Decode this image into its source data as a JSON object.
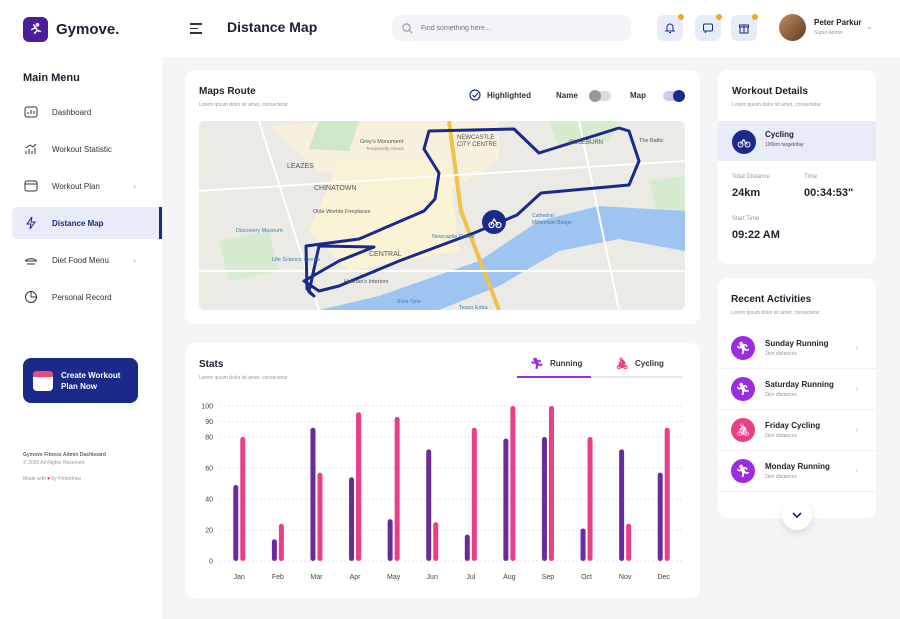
{
  "brand": {
    "name": "Gymove."
  },
  "sidebar": {
    "menu_title": "Main Menu",
    "items": [
      {
        "label": "Dashboard"
      },
      {
        "label": "Workout Statistic"
      },
      {
        "label": "Workout Plan"
      },
      {
        "label": "Distance Map"
      },
      {
        "label": "Diet Food Menu"
      },
      {
        "label": "Personal Record"
      }
    ],
    "cta": {
      "line1": "Create Workout",
      "line2": "Plan Now"
    },
    "footer": {
      "title": "Gymove Fitness Admin Dashboard",
      "copyright": "© 2020 All Rights Reserved",
      "made_with": "Made with",
      "by": "by Peterdraw"
    }
  },
  "header": {
    "title": "Distance Map",
    "search_placeholder": "Find something here...",
    "user": {
      "name": "Peter Parkur",
      "role": "Super Admin"
    }
  },
  "maps_route": {
    "title": "Maps Route",
    "subtitle": "Lorem ipsum dolor sit amet, consectetur",
    "highlighted_label": "Highlighted",
    "name_label": "Name",
    "map_label": "Map",
    "name_on": false,
    "map_on": true,
    "places": [
      "LEAZES",
      "CHINATOWN",
      "CENTRAL",
      "Grey's Monument",
      "Temporarily closed",
      "NEWCASTLE",
      "CITY CENTRE",
      "OUSEBURN",
      "The Baltic",
      "Olde Worlde Fireplaces",
      "Discovery Museum",
      "Newcastle Castle",
      "Life Science Centre",
      "Hadrian's Interiors",
      "Tesco Extra",
      "River Tyne",
      "Cathedral",
      "Millennium Bridge"
    ]
  },
  "stats": {
    "title": "Stats",
    "subtitle": "Lorem ipsum dolor sit amet, consectetur",
    "tabs": [
      {
        "label": "Running"
      },
      {
        "label": "Cycling"
      }
    ]
  },
  "chart_data": {
    "type": "bar",
    "categories": [
      "Jan",
      "Feb",
      "Mar",
      "Apr",
      "May",
      "Jun",
      "Jul",
      "Aug",
      "Sep",
      "Oct",
      "Nov",
      "Dec"
    ],
    "series": [
      {
        "values": [
          49,
          14,
          86,
          54,
          27,
          72,
          17,
          79,
          80,
          21,
          72,
          57
        ],
        "color": "#6a2c9c"
      },
      {
        "values": [
          80,
          24,
          57,
          96,
          93,
          25,
          86,
          100,
          100,
          80,
          24,
          86
        ],
        "color": "#e93f8a"
      }
    ],
    "yticks": [
      0,
      20,
      40,
      60,
      80,
      90,
      100
    ],
    "ylim": [
      0,
      100
    ]
  },
  "workout": {
    "title": "Workout Details",
    "subtitle": "Lorem ipsum dolor sit amet, consectetur",
    "activity": "Cycling",
    "target": "100km target/day",
    "total_label": "Total Distance",
    "total": "24km",
    "time_label": "Time",
    "time": "00:34:53\"",
    "start_label": "Start Time",
    "start": "09:22 AM"
  },
  "recent": {
    "title": "Recent Activities",
    "subtitle": "Lorem ipsum dolor sit amet, consectetur",
    "items": [
      {
        "title": "Sunday Running",
        "sub": "2km distances"
      },
      {
        "title": "Saturday Running",
        "sub": "2km distances"
      },
      {
        "title": "Friday Cycling",
        "sub": "2km distances"
      },
      {
        "title": "Monday Running",
        "sub": "2km distances"
      }
    ]
  },
  "colors": {
    "primary": "#1b2a8a",
    "running": "#9b2ce0",
    "cycling": "#e93f8a",
    "series_dark": "#6a2c9c"
  }
}
